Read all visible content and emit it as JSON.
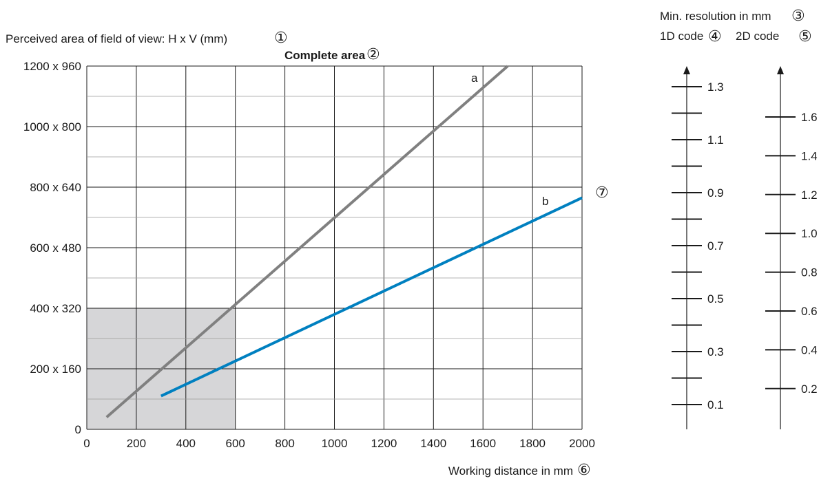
{
  "chart_data": {
    "type": "line",
    "ylabel": "Perceived area of field of view: H x V (mm)",
    "ylabel_marker": "①",
    "title": "Complete area",
    "title_marker": "②",
    "xlabel": "Working distance in mm",
    "xlabel_marker": "⑥",
    "x_ticks": [
      "0",
      "200",
      "400",
      "600",
      "800",
      "1000",
      "1200",
      "1400",
      "1600",
      "1800",
      "2000"
    ],
    "y_ticks": [
      "0",
      "200 x 160",
      "400 x 320",
      "600 x 480",
      "800 x 640",
      "1000 x 800",
      "1200 x 960"
    ],
    "x_range": [
      0,
      2000
    ],
    "y_range": [
      0,
      1200
    ],
    "grid": true,
    "highlight_region": {
      "x": [
        0,
        600
      ],
      "y": [
        0,
        400
      ]
    },
    "series": [
      {
        "name": "a",
        "color": "#808080",
        "points": [
          [
            80,
            40
          ],
          [
            1700,
            1200
          ]
        ]
      },
      {
        "name": "b",
        "color": "#0080c0",
        "marker": "⑦",
        "points": [
          [
            300,
            110
          ],
          [
            2000,
            765
          ]
        ]
      }
    ]
  },
  "resolution_scales": {
    "title": "Min. resolution in mm",
    "title_marker": "③",
    "code1d": {
      "label": "1D code",
      "marker": "④",
      "labels": [
        "1.3",
        "1.1",
        "0.9",
        "0.7",
        "0.5",
        "0.3",
        "0.1"
      ]
    },
    "code2d": {
      "label": "2D code",
      "marker": "⑤",
      "labels": [
        "1.6",
        "1.4",
        "1.2",
        "1.0",
        "0.8",
        "0.6",
        "0.4",
        "0.2"
      ]
    }
  },
  "colors": {
    "grid": "#1a1a1a",
    "highlight": "#d6d6d8",
    "series_a": "#808080",
    "series_b": "#0080c0"
  }
}
